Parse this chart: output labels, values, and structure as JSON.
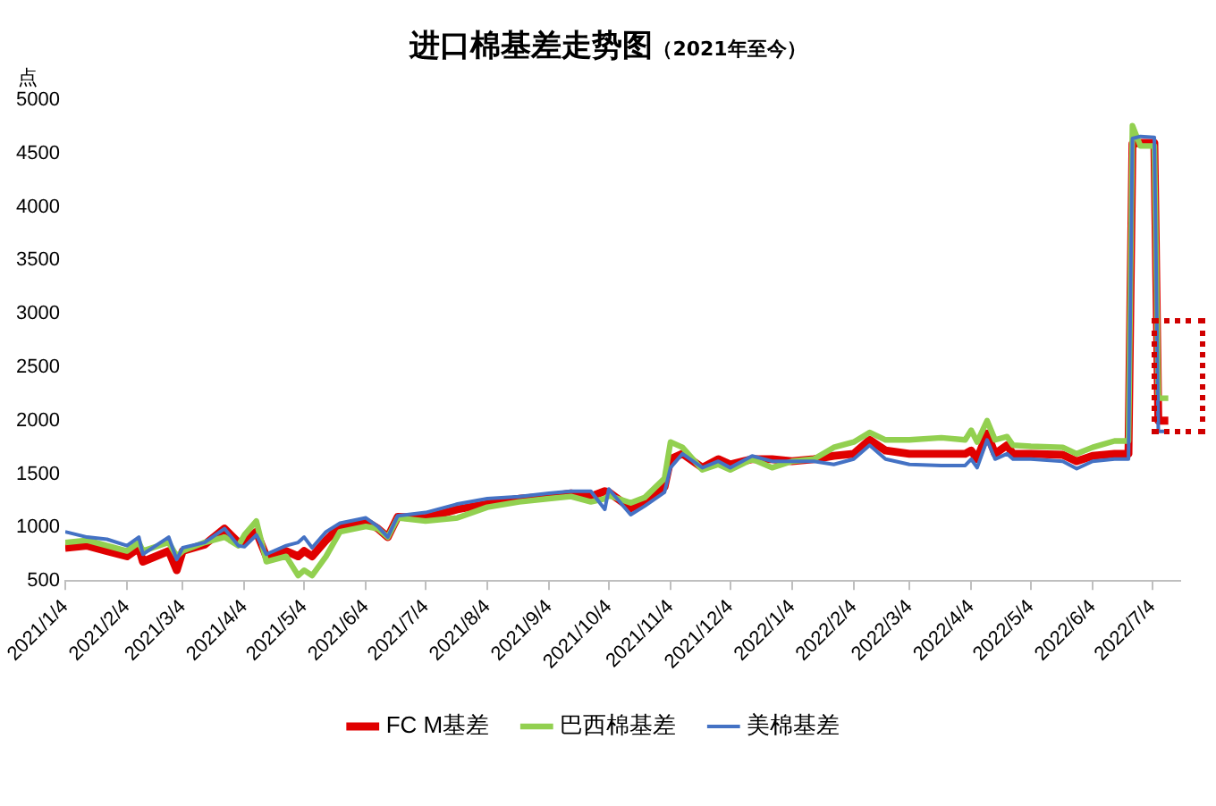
{
  "chart_data": {
    "type": "line",
    "title": "进口棉基差走势图",
    "subtitle": "（2021年至今）",
    "ylabel": "点",
    "x": [
      "2021-01-04",
      "2021-01-15",
      "2021-01-25",
      "2021-02-04",
      "2021-02-10",
      "2021-02-12",
      "2021-02-25",
      "2021-03-01",
      "2021-03-04",
      "2021-03-15",
      "2021-03-25",
      "2021-04-01",
      "2021-04-04",
      "2021-04-10",
      "2021-04-15",
      "2021-04-25",
      "2021-05-01",
      "2021-05-04",
      "2021-05-08",
      "2021-05-15",
      "2021-05-22",
      "2021-06-04",
      "2021-06-10",
      "2021-06-15",
      "2021-06-20",
      "2021-07-04",
      "2021-07-20",
      "2021-08-04",
      "2021-08-20",
      "2021-09-04",
      "2021-09-15",
      "2021-09-25",
      "2021-10-02",
      "2021-10-04",
      "2021-10-15",
      "2021-10-22",
      "2021-11-01",
      "2021-11-04",
      "2021-11-10",
      "2021-11-20",
      "2021-11-28",
      "2021-12-04",
      "2021-12-15",
      "2021-12-25",
      "2022-01-04",
      "2022-01-15",
      "2022-01-25",
      "2022-02-04",
      "2022-02-12",
      "2022-02-20",
      "2022-03-04",
      "2022-03-20",
      "2022-04-01",
      "2022-04-04",
      "2022-04-07",
      "2022-04-12",
      "2022-04-16",
      "2022-04-22",
      "2022-04-25",
      "2022-05-04",
      "2022-05-20",
      "2022-05-27",
      "2022-06-04",
      "2022-06-15",
      "2022-06-22",
      "2022-06-24",
      "2022-06-28",
      "2022-07-05",
      "2022-07-07",
      "2022-07-12"
    ],
    "series": [
      {
        "name": "FC M基差",
        "color": "#e00000",
        "values": [
          810,
          830,
          780,
          730,
          810,
          680,
          780,
          600,
          780,
          840,
          990,
          860,
          860,
          960,
          730,
          780,
          730,
          780,
          730,
          880,
          1010,
          1060,
          990,
          910,
          1100,
          1090,
          1170,
          1220,
          1270,
          1290,
          1320,
          1290,
          1340,
          1330,
          1180,
          1250,
          1380,
          1640,
          1690,
          1560,
          1640,
          1590,
          1640,
          1640,
          1620,
          1640,
          1670,
          1690,
          1820,
          1720,
          1690,
          1690,
          1690,
          1720,
          1640,
          1880,
          1690,
          1770,
          1690,
          1690,
          1680,
          1620,
          1670,
          1690,
          1690,
          4590,
          4600,
          4600,
          2000,
          2000
        ]
      },
      {
        "name": "巴西棉基差",
        "color": "#92d050",
        "values": [
          860,
          880,
          830,
          780,
          860,
          780,
          860,
          730,
          780,
          860,
          910,
          830,
          930,
          1060,
          680,
          730,
          550,
          600,
          550,
          730,
          960,
          1010,
          990,
          910,
          1090,
          1060,
          1090,
          1190,
          1240,
          1270,
          1290,
          1240,
          1270,
          1300,
          1230,
          1280,
          1460,
          1800,
          1750,
          1540,
          1590,
          1540,
          1640,
          1560,
          1620,
          1640,
          1750,
          1800,
          1890,
          1820,
          1820,
          1840,
          1820,
          1910,
          1800,
          2000,
          1820,
          1850,
          1770,
          1760,
          1750,
          1690,
          1750,
          1810,
          1810,
          4760,
          4570,
          4570,
          2210,
          2210
        ]
      },
      {
        "name": "美棉基差",
        "color": "#4472c4",
        "values": [
          960,
          910,
          890,
          830,
          910,
          750,
          910,
          700,
          810,
          860,
          990,
          830,
          820,
          930,
          750,
          830,
          860,
          910,
          810,
          960,
          1040,
          1090,
          1010,
          910,
          1110,
          1140,
          1220,
          1270,
          1290,
          1320,
          1340,
          1340,
          1170,
          1360,
          1120,
          1200,
          1330,
          1560,
          1690,
          1560,
          1620,
          1560,
          1670,
          1620,
          1620,
          1620,
          1590,
          1640,
          1770,
          1640,
          1590,
          1580,
          1580,
          1640,
          1560,
          1820,
          1640,
          1690,
          1640,
          1640,
          1620,
          1550,
          1620,
          1640,
          1640,
          4640,
          4660,
          4650,
          1900,
          1900
        ]
      }
    ],
    "xlim": [
      "2021-01-04",
      "2022-07-18"
    ],
    "xticks": [
      {
        "value": "2021-01-04",
        "label": "2021/1/4"
      },
      {
        "value": "2021-02-04",
        "label": "2021/2/4"
      },
      {
        "value": "2021-03-04",
        "label": "2021/3/4"
      },
      {
        "value": "2021-04-04",
        "label": "2021/4/4"
      },
      {
        "value": "2021-05-04",
        "label": "2021/5/4"
      },
      {
        "value": "2021-06-04",
        "label": "2021/6/4"
      },
      {
        "value": "2021-07-04",
        "label": "2021/7/4"
      },
      {
        "value": "2021-08-04",
        "label": "2021/8/4"
      },
      {
        "value": "2021-09-04",
        "label": "2021/9/4"
      },
      {
        "value": "2021-10-04",
        "label": "2021/10/4"
      },
      {
        "value": "2021-11-04",
        "label": "2021/11/4"
      },
      {
        "value": "2021-12-04",
        "label": "2021/12/4"
      },
      {
        "value": "2022-01-04",
        "label": "2022/1/4"
      },
      {
        "value": "2022-02-04",
        "label": "2022/2/4"
      },
      {
        "value": "2022-03-04",
        "label": "2022/3/4"
      },
      {
        "value": "2022-04-04",
        "label": "2022/4/4"
      },
      {
        "value": "2022-05-04",
        "label": "2022/5/4"
      },
      {
        "value": "2022-06-04",
        "label": "2022/6/4"
      },
      {
        "value": "2022-07-04",
        "label": "2022/7/4"
      }
    ],
    "ylim": [
      500,
      5000
    ],
    "yticks": [
      500,
      1000,
      1500,
      2000,
      2500,
      3000,
      3500,
      4000,
      4500,
      5000
    ],
    "grid": false,
    "legend": "bottom",
    "marker": "none",
    "line_style": "solid"
  }
}
